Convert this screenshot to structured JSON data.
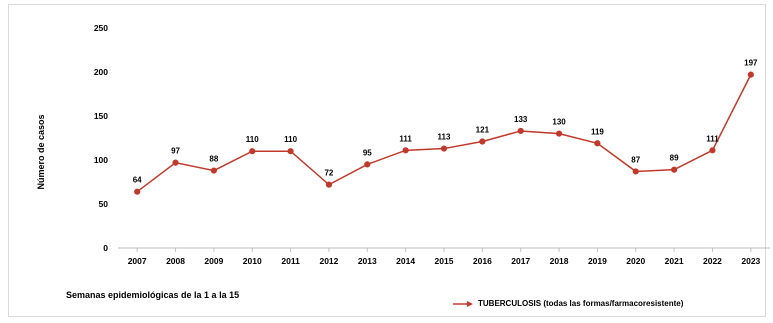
{
  "chart_data": {
    "type": "line",
    "x": [
      "2007",
      "2008",
      "2009",
      "2010",
      "2011",
      "2012",
      "2013",
      "2014",
      "2015",
      "2016",
      "2017",
      "2018",
      "2019",
      "2020",
      "2021",
      "2022",
      "2023"
    ],
    "series": [
      {
        "name": "TUBERCULOSIS (todas las formas/farmacoresistente)",
        "values": [
          64,
          97,
          88,
          110,
          110,
          72,
          95,
          111,
          113,
          121,
          133,
          130,
          119,
          87,
          89,
          111,
          197
        ]
      }
    ],
    "ylabel": "Número de casos",
    "ylim": [
      0,
      250
    ],
    "yticks": [
      0,
      50,
      100,
      150,
      200,
      250
    ],
    "grid": false,
    "legend_position": "bottom-right",
    "line_color": "#c0392b",
    "marker_color": "#c0392b"
  },
  "footnote": "Semanas epidemiológicas de la 1 a la  15"
}
